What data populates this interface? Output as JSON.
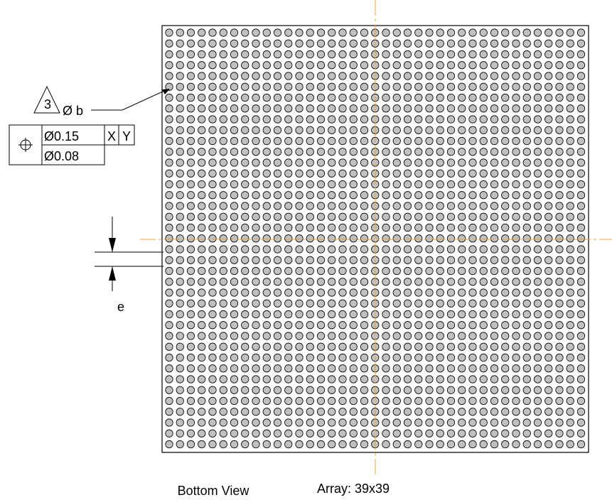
{
  "balloon": {
    "number": "3"
  },
  "ball_callout": "Ø b",
  "feature_control_frame": {
    "symbol": "position-icon",
    "row1_tolerance": "Ø0.15",
    "row1_datum_1": "X",
    "row1_datum_2": "Y",
    "row2_tolerance": "Ø0.08"
  },
  "pitch_dimension": "e",
  "view_title": "Bottom View",
  "array_label": "Array: 39x39",
  "array": {
    "rows": 39,
    "cols": 39
  },
  "colors": {
    "outline": "#000000",
    "ball_fill": "#c0c0c0",
    "centerline": "#f0a030"
  }
}
